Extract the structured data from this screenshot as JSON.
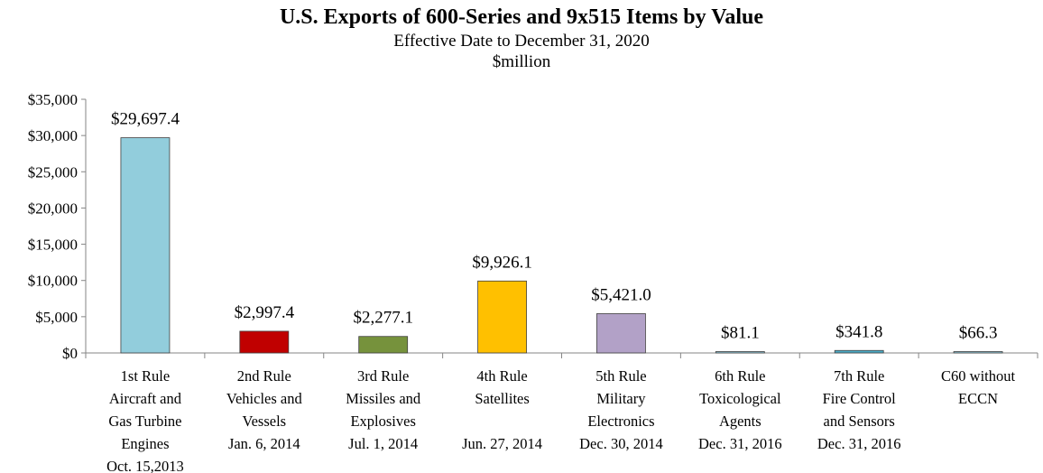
{
  "chart_data": {
    "type": "bar",
    "title": "U.S. Exports of 600-Series and 9x515 Items by Value",
    "subtitle": "Effective Date to December 31, 2020",
    "unit_label": "$million",
    "categories": [
      [
        "1st Rule",
        "Aircraft and",
        "Gas Turbine",
        "Engines",
        "Oct. 15,2013"
      ],
      [
        "2nd Rule",
        "Vehicles and",
        "Vessels",
        "Jan. 6, 2014"
      ],
      [
        "3rd Rule",
        "Missiles and",
        "Explosives",
        "Jul. 1, 2014"
      ],
      [
        "4th Rule",
        "Satellites",
        "",
        "Jun. 27, 2014"
      ],
      [
        "5th Rule",
        "Military",
        "Electronics",
        "Dec. 30, 2014"
      ],
      [
        "6th Rule",
        "Toxicological",
        "Agents",
        "Dec. 31, 2016"
      ],
      [
        "7th Rule",
        "Fire Control",
        "and Sensors",
        "Dec. 31, 2016"
      ],
      [
        "C60 without",
        "ECCN"
      ]
    ],
    "values": [
      29697.4,
      2997.4,
      2277.1,
      9926.1,
      5421.0,
      81.1,
      341.8,
      66.3
    ],
    "data_labels": [
      "$29,697.4",
      "$2,997.4",
      "$2,277.1",
      "$9,926.1",
      "$5,421.0",
      "$81.1",
      "$341.8",
      "$66.3"
    ],
    "bar_colors": [
      "#92CDDC",
      "#C00000",
      "#76923C",
      "#FFC000",
      "#B2A1C7",
      "#92CDDC",
      "#4BACC6",
      "#92CDDC"
    ],
    "ylim": [
      0,
      35000
    ],
    "yticks": [
      0,
      5000,
      10000,
      15000,
      20000,
      25000,
      30000,
      35000
    ],
    "ytick_labels": [
      "$0",
      "$5,000",
      "$10,000",
      "$15,000",
      "$20,000",
      "$25,000",
      "$30,000",
      "$35,000"
    ],
    "grid": false,
    "legend": "none"
  }
}
